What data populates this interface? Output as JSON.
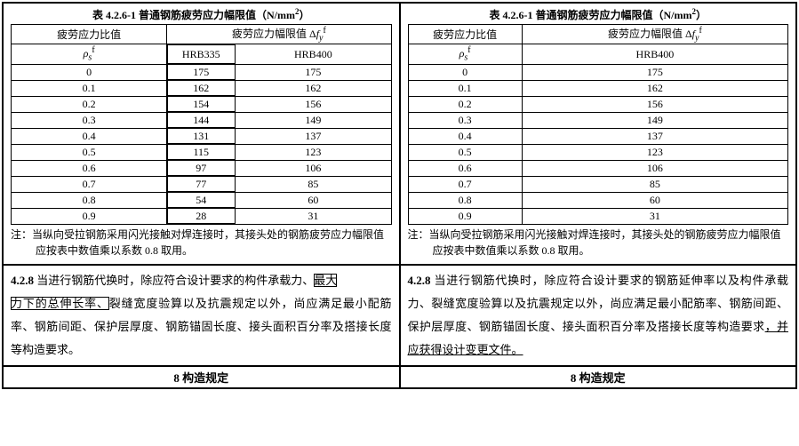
{
  "left": {
    "title_prefix": "表 4.2.6-1    普通钢筋疲劳应力幅限值（N/mm",
    "title_sup": "2",
    "title_suffix": "）",
    "header_ratio": "疲劳应力比值",
    "header_symbol_rho": "ρ",
    "header_symbol_sub": "s",
    "header_symbol_sup": "f",
    "header_limit": "疲劳应力幅限值 Δ",
    "header_limit_f": "f",
    "header_limit_y": "y",
    "header_limit_sup": "f",
    "col1": "HRB335",
    "col2": "HRB400",
    "rows": [
      {
        "r": "0",
        "a": "175",
        "b": "175"
      },
      {
        "r": "0.1",
        "a": "162",
        "b": "162"
      },
      {
        "r": "0.2",
        "a": "154",
        "b": "156"
      },
      {
        "r": "0.3",
        "a": "144",
        "b": "149"
      },
      {
        "r": "0.4",
        "a": "131",
        "b": "137"
      },
      {
        "r": "0.5",
        "a": "115",
        "b": "123"
      },
      {
        "r": "0.6",
        "a": "97",
        "b": "106"
      },
      {
        "r": "0.7",
        "a": "77",
        "b": "85"
      },
      {
        "r": "0.8",
        "a": "54",
        "b": "60"
      },
      {
        "r": "0.9",
        "a": "28",
        "b": "31"
      }
    ],
    "note": "注：当纵向受拉钢筋采用闪光接触对焊连接时，其接头处的钢筋疲劳应力幅限值应按表中数值乘以系数 0.8 取用。",
    "col1_width": "18%",
    "col2_width": "41%"
  },
  "right": {
    "title_prefix": "表 4.2.6-1    普通钢筋疲劳应力幅限值（N/mm",
    "title_sup": "2",
    "title_suffix": "）",
    "header_ratio": "疲劳应力比值",
    "header_symbol_rho": "ρ",
    "header_symbol_sub": "s",
    "header_symbol_sup": "f",
    "header_limit": "疲劳应力幅限值 Δ",
    "header_limit_f": "f",
    "header_limit_y": "y",
    "header_limit_sup": "f",
    "col1": "HRB400",
    "rows": [
      {
        "r": "0",
        "a": "175"
      },
      {
        "r": "0.1",
        "a": "162"
      },
      {
        "r": "0.2",
        "a": "156"
      },
      {
        "r": "0.3",
        "a": "149"
      },
      {
        "r": "0.4",
        "a": "137"
      },
      {
        "r": "0.5",
        "a": "123"
      },
      {
        "r": "0.6",
        "a": "106"
      },
      {
        "r": "0.7",
        "a": "85"
      },
      {
        "r": "0.8",
        "a": "60"
      },
      {
        "r": "0.9",
        "a": "31"
      }
    ],
    "note": "注：当纵向受拉钢筋采用闪光接触对焊连接时，其接头处的钢筋疲劳应力幅限值应按表中数值乘以系数 0.8 取用。"
  },
  "para_left": {
    "num": "4.2.8",
    "p1": "  当进行钢筋代换时，除应符合设计要求的构件承载力、",
    "box1": "最大",
    "box2": "力下的总伸长率、",
    "p2": "裂缝宽度验算以及抗震规定以外，尚应满足最小配筋率、钢筋间距、保护层厚度、钢筋锚固长度、接头面积百分率及搭接长度等构造要求。"
  },
  "para_right": {
    "num": "4.2.8",
    "text": "  当进行钢筋代换时，除应符合设计要求的钢筋延伸率以及构件承载力、裂缝宽度验算以及抗震规定以外，尚应满足最小配筋率、钢筋间距、保护层厚度、钢筋锚固长度、接头面积百分率及搭接长度等构造要求",
    "underline": "，并应获得设计变更文件。"
  },
  "section_title": "8   构造规定"
}
